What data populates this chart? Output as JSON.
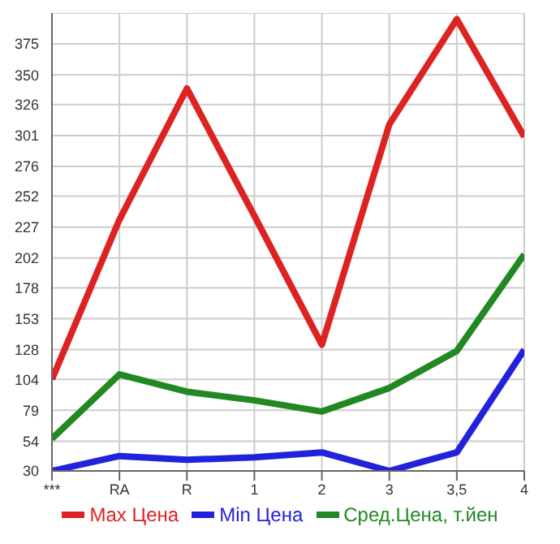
{
  "chart_data": {
    "type": "line",
    "categories": [
      "***",
      "RA",
      "R",
      "1",
      "2",
      "3",
      "3,5",
      "4"
    ],
    "series": [
      {
        "name": "Max Цена",
        "color": "#dd2222",
        "values": [
          104,
          233,
          339,
          236,
          132,
          310,
          395,
          300
        ]
      },
      {
        "name": "Min Цена",
        "color": "#2222dd",
        "values": [
          30,
          42,
          39,
          41,
          45,
          30,
          45,
          128
        ]
      },
      {
        "name": "Сред.Цена, т.йен",
        "color": "#228822",
        "values": [
          56,
          108,
          94,
          87,
          78,
          97,
          127,
          205
        ]
      }
    ],
    "ylim": [
      30,
      400
    ],
    "yticks": [
      30,
      54,
      79,
      104,
      128,
      153,
      178,
      202,
      227,
      252,
      276,
      301,
      326,
      350,
      375
    ],
    "grid": true,
    "legend": "bottom",
    "marker": "none",
    "line_style": "solid"
  }
}
